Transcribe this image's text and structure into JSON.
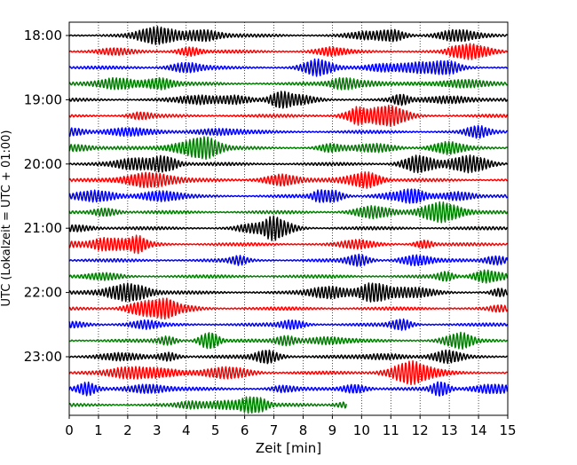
{
  "chart_data": {
    "type": "line",
    "title": "",
    "xlabel": "Zeit  [min]",
    "ylabel": "UTC (Lokalzeit = UTC + 01:00)",
    "xlim": [
      0,
      15
    ],
    "x_ticks": [
      "0",
      "1",
      "2",
      "3",
      "4",
      "5",
      "6",
      "7",
      "8",
      "9",
      "10",
      "11",
      "12",
      "13",
      "14",
      "15"
    ],
    "y_ticks": [
      "18:00",
      "19:00",
      "20:00",
      "21:00",
      "22:00",
      "23:00"
    ],
    "grid": "vertical dotted lines at each minute",
    "trace_interval_min": 15,
    "trace_colors": [
      "#000000",
      "#ff0000",
      "#0000ff",
      "#007f00"
    ],
    "traces": [
      {
        "start": "18:00",
        "duration_min": 15,
        "color": "#000000"
      },
      {
        "start": "18:15",
        "duration_min": 15,
        "color": "#ff0000"
      },
      {
        "start": "18:30",
        "duration_min": 15,
        "color": "#0000ff"
      },
      {
        "start": "18:45",
        "duration_min": 15,
        "color": "#007f00"
      },
      {
        "start": "19:00",
        "duration_min": 15,
        "color": "#000000"
      },
      {
        "start": "19:15",
        "duration_min": 15,
        "color": "#ff0000"
      },
      {
        "start": "19:30",
        "duration_min": 15,
        "color": "#0000ff"
      },
      {
        "start": "19:45",
        "duration_min": 15,
        "color": "#007f00"
      },
      {
        "start": "20:00",
        "duration_min": 15,
        "color": "#000000"
      },
      {
        "start": "20:15",
        "duration_min": 15,
        "color": "#ff0000"
      },
      {
        "start": "20:30",
        "duration_min": 15,
        "color": "#0000ff"
      },
      {
        "start": "20:45",
        "duration_min": 15,
        "color": "#007f00"
      },
      {
        "start": "21:00",
        "duration_min": 15,
        "color": "#000000"
      },
      {
        "start": "21:15",
        "duration_min": 15,
        "color": "#ff0000"
      },
      {
        "start": "21:30",
        "duration_min": 15,
        "color": "#0000ff"
      },
      {
        "start": "21:45",
        "duration_min": 15,
        "color": "#007f00"
      },
      {
        "start": "22:00",
        "duration_min": 15,
        "color": "#000000"
      },
      {
        "start": "22:15",
        "duration_min": 15,
        "color": "#ff0000"
      },
      {
        "start": "22:30",
        "duration_min": 15,
        "color": "#0000ff"
      },
      {
        "start": "22:45",
        "duration_min": 15,
        "color": "#007f00"
      },
      {
        "start": "23:00",
        "duration_min": 15,
        "color": "#000000"
      },
      {
        "start": "23:15",
        "duration_min": 15,
        "color": "#ff0000"
      },
      {
        "start": "23:30",
        "duration_min": 15,
        "color": "#0000ff"
      },
      {
        "start": "23:45",
        "duration_min": 9.5,
        "color": "#007f00"
      }
    ]
  }
}
